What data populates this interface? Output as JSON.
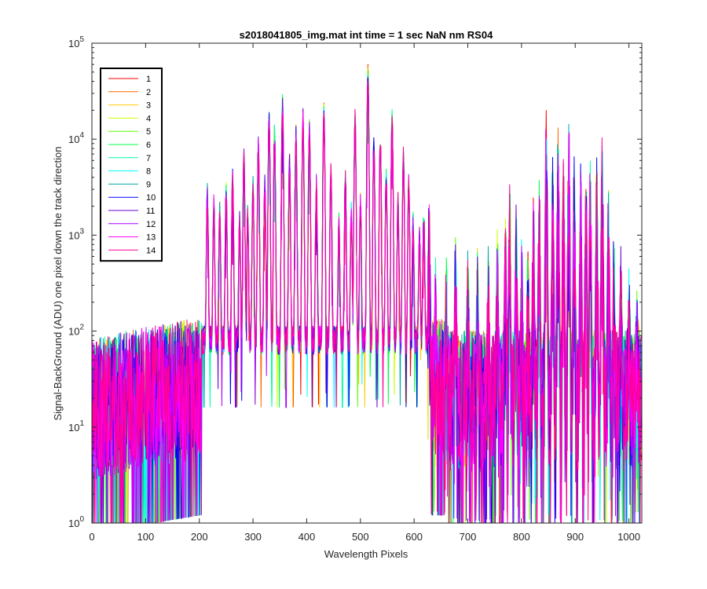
{
  "chart_data": {
    "type": "line",
    "title": "s2018041805_img.mat int time = 1 sec  NaN nm RS04",
    "xlabel": "Wavelength Pixels",
    "ylabel": "Signal-BackGround (ADU) one pixel down the track direction",
    "xlim": [
      0,
      1024
    ],
    "ylim": [
      1,
      100000
    ],
    "yscale": "log",
    "xticks": [
      0,
      100,
      200,
      300,
      400,
      500,
      600,
      700,
      800,
      900,
      1000
    ],
    "xtick_labels": [
      "0",
      "100",
      "200",
      "300",
      "400",
      "500",
      "600",
      "700",
      "800",
      "900",
      "1000"
    ],
    "yticks": [
      1,
      10,
      100,
      1000,
      10000,
      100000
    ],
    "ytick_labels": [
      {
        "base": "10",
        "exp": "0"
      },
      {
        "base": "10",
        "exp": "1"
      },
      {
        "base": "10",
        "exp": "2"
      },
      {
        "base": "10",
        "exp": "3"
      },
      {
        "base": "10",
        "exp": "4"
      },
      {
        "base": "10",
        "exp": "5"
      }
    ],
    "grid": false,
    "legend_position": "top-left",
    "series": [
      {
        "name": "1",
        "color": "#ff0000"
      },
      {
        "name": "2",
        "color": "#ff6a00"
      },
      {
        "name": "3",
        "color": "#ffcc00"
      },
      {
        "name": "4",
        "color": "#ccff00"
      },
      {
        "name": "5",
        "color": "#55ff00"
      },
      {
        "name": "6",
        "color": "#00ff44"
      },
      {
        "name": "7",
        "color": "#00ffaa"
      },
      {
        "name": "8",
        "color": "#00ffff"
      },
      {
        "name": "9",
        "color": "#00aaaa"
      },
      {
        "name": "10",
        "color": "#0000ff"
      },
      {
        "name": "11",
        "color": "#6600cc"
      },
      {
        "name": "12",
        "color": "#aa00ff"
      },
      {
        "name": "13",
        "color": "#ff00ff"
      },
      {
        "name": "14",
        "color": "#ff0099"
      }
    ],
    "peaks": [
      {
        "x": 215,
        "y": 2500
      },
      {
        "x": 227,
        "y": 1800
      },
      {
        "x": 238,
        "y": 1500
      },
      {
        "x": 250,
        "y": 2500
      },
      {
        "x": 262,
        "y": 3500
      },
      {
        "x": 275,
        "y": 1200
      },
      {
        "x": 283,
        "y": 6000
      },
      {
        "x": 290,
        "y": 1500
      },
      {
        "x": 300,
        "y": 3000
      },
      {
        "x": 310,
        "y": 7500
      },
      {
        "x": 322,
        "y": 3000
      },
      {
        "x": 330,
        "y": 15000
      },
      {
        "x": 340,
        "y": 10000
      },
      {
        "x": 355,
        "y": 22000
      },
      {
        "x": 368,
        "y": 5000
      },
      {
        "x": 380,
        "y": 10000
      },
      {
        "x": 393,
        "y": 15000
      },
      {
        "x": 405,
        "y": 12000
      },
      {
        "x": 418,
        "y": 3000
      },
      {
        "x": 432,
        "y": 17000
      },
      {
        "x": 445,
        "y": 4000
      },
      {
        "x": 460,
        "y": 1200
      },
      {
        "x": 472,
        "y": 3500
      },
      {
        "x": 483,
        "y": 1500
      },
      {
        "x": 490,
        "y": 15000
      },
      {
        "x": 500,
        "y": 2000
      },
      {
        "x": 514,
        "y": 45000
      },
      {
        "x": 525,
        "y": 8000
      },
      {
        "x": 537,
        "y": 9000
      },
      {
        "x": 548,
        "y": 3500
      },
      {
        "x": 559,
        "y": 15000
      },
      {
        "x": 570,
        "y": 2000
      },
      {
        "x": 580,
        "y": 6000
      },
      {
        "x": 590,
        "y": 3000
      },
      {
        "x": 598,
        "y": 1200
      },
      {
        "x": 610,
        "y": 800
      },
      {
        "x": 618,
        "y": 1500
      },
      {
        "x": 628,
        "y": 500
      },
      {
        "x": 640,
        "y": 100
      },
      {
        "x": 660,
        "y": 120
      },
      {
        "x": 677,
        "y": 200
      },
      {
        "x": 700,
        "y": 150
      },
      {
        "x": 718,
        "y": 150
      },
      {
        "x": 738,
        "y": 180
      },
      {
        "x": 755,
        "y": 250
      },
      {
        "x": 770,
        "y": 400
      },
      {
        "x": 778,
        "y": 900
      },
      {
        "x": 790,
        "y": 500
      },
      {
        "x": 800,
        "y": 200
      },
      {
        "x": 812,
        "y": 180
      },
      {
        "x": 822,
        "y": 600
      },
      {
        "x": 833,
        "y": 800
      },
      {
        "x": 846,
        "y": 4500
      },
      {
        "x": 858,
        "y": 1500
      },
      {
        "x": 868,
        "y": 3000
      },
      {
        "x": 878,
        "y": 1500
      },
      {
        "x": 888,
        "y": 4000
      },
      {
        "x": 898,
        "y": 1500
      },
      {
        "x": 910,
        "y": 1200
      },
      {
        "x": 920,
        "y": 900
      },
      {
        "x": 928,
        "y": 1500
      },
      {
        "x": 940,
        "y": 1800
      },
      {
        "x": 950,
        "y": 2500
      },
      {
        "x": 962,
        "y": 700
      },
      {
        "x": 972,
        "y": 250
      },
      {
        "x": 985,
        "y": 150
      },
      {
        "x": 1000,
        "y": 80
      },
      {
        "x": 1015,
        "y": 50
      }
    ]
  }
}
